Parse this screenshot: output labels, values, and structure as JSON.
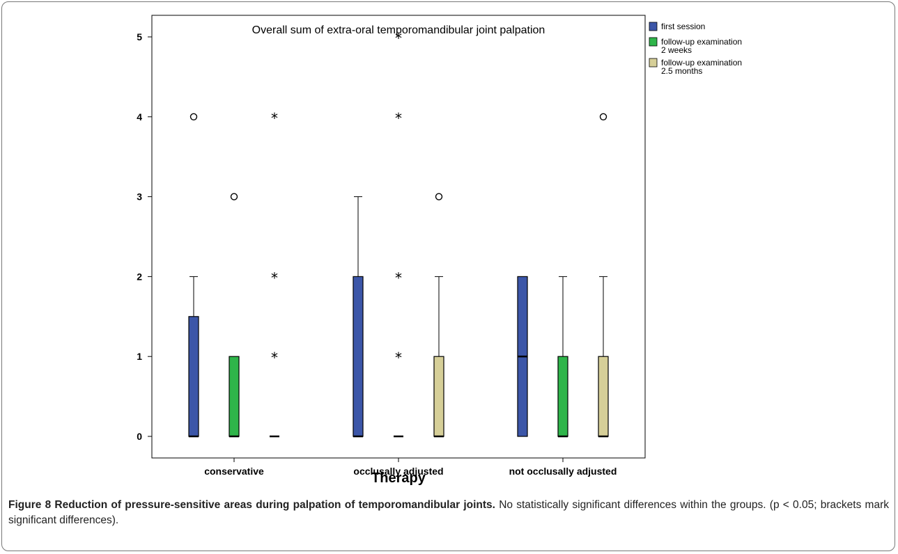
{
  "chart_data": {
    "type": "box",
    "title": "Overall sum of extra-oral temporomandibular joint palpation",
    "xlabel": "Therapy",
    "ylabel": "",
    "ylim": [
      -0.27,
      5.27
    ],
    "yticks": [
      0,
      1,
      2,
      3,
      4,
      5
    ],
    "categories": [
      "conservative",
      "occlusally adjusted",
      "not occlusally adjusted"
    ],
    "legend_position": "top-right",
    "series": [
      {
        "name": "first session",
        "color": "#3C56A8",
        "boxes": [
          {
            "q1": 0,
            "median": 0,
            "q3": 1.5,
            "whisker_low": 0,
            "whisker_high": 2,
            "outliers": [
              4
            ],
            "extremes": []
          },
          {
            "q1": 0,
            "median": 0,
            "q3": 2,
            "whisker_low": 0,
            "whisker_high": 3,
            "outliers": [],
            "extremes": []
          },
          {
            "q1": 0,
            "median": 1,
            "q3": 2,
            "whisker_low": 0,
            "whisker_high": 2,
            "outliers": [],
            "extremes": []
          }
        ]
      },
      {
        "name": "follow-up examination 2 weeks",
        "legend_lines": [
          "follow-up examination",
          "2 weeks"
        ],
        "color": "#2FB54A",
        "boxes": [
          {
            "q1": 0,
            "median": 0,
            "q3": 1,
            "whisker_low": 0,
            "whisker_high": 1,
            "outliers": [
              3
            ],
            "extremes": []
          },
          {
            "q1": 0,
            "median": 0,
            "q3": 0,
            "whisker_low": 0,
            "whisker_high": 0,
            "outliers": [],
            "extremes": [
              1,
              2,
              4,
              5
            ]
          },
          {
            "q1": 0,
            "median": 0,
            "q3": 1,
            "whisker_low": 0,
            "whisker_high": 2,
            "outliers": [],
            "extremes": []
          }
        ]
      },
      {
        "name": "follow-up examination 2.5 months",
        "legend_lines": [
          "follow-up examination",
          "2.5 months"
        ],
        "color": "#D6CF98",
        "boxes": [
          {
            "q1": 0,
            "median": 0,
            "q3": 0,
            "whisker_low": 0,
            "whisker_high": 0,
            "outliers": [],
            "extremes": [
              1,
              2,
              4
            ]
          },
          {
            "q1": 0,
            "median": 0,
            "q3": 1,
            "whisker_low": 0,
            "whisker_high": 2,
            "outliers": [
              3
            ],
            "extremes": []
          },
          {
            "q1": 0,
            "median": 0,
            "q3": 1,
            "whisker_low": 0,
            "whisker_high": 2,
            "outliers": [
              4
            ],
            "extremes": []
          }
        ]
      }
    ]
  },
  "caption": {
    "lead": "Figure 8 Reduction of pressure-sensitive areas during palpation of temporomandibular joints.",
    "text": "No statistically significant differences within the groups. (p < 0.05; brackets mark significant differences)."
  }
}
